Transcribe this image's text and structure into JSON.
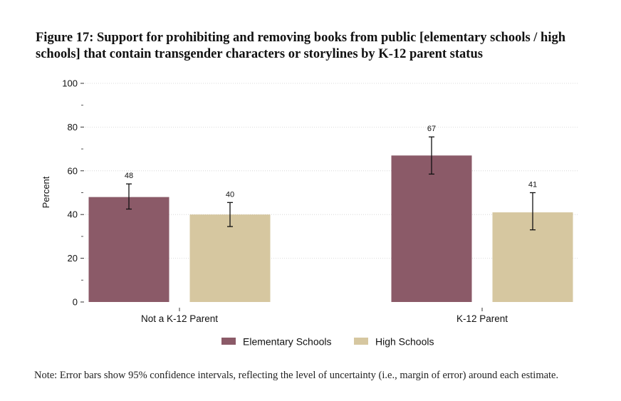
{
  "figure": {
    "title": "Figure 17: Support for prohibiting and removing books from public [elementary schools / high schools] that contain transgender characters or storylines by K-12 parent status",
    "note": "Note: Error bars show 95% confidence intervals, reflecting the level of uncertainty (i.e., margin of error) around each estimate."
  },
  "chart_data": {
    "type": "bar",
    "title": "Figure 17: Support for prohibiting and removing books from public [elementary schools / high schools] that contain transgender characters or storylines by K-12 parent status",
    "xlabel": "",
    "ylabel": "Percent",
    "ylim": [
      0,
      100
    ],
    "yticks": [
      0,
      20,
      40,
      60,
      80,
      100
    ],
    "yticks_minor": [
      10,
      30,
      50,
      70,
      90
    ],
    "grid": true,
    "legend_position": "bottom",
    "categories": [
      "Not a K-12 Parent",
      "K-12 Parent"
    ],
    "series": [
      {
        "name": "Elementary Schools",
        "color": "#8b5a68",
        "values": [
          48,
          67
        ],
        "labels": [
          "48",
          "67"
        ],
        "ci_low": [
          42.5,
          58.5
        ],
        "ci_high": [
          54,
          75.5
        ]
      },
      {
        "name": "High Schools",
        "color": "#d6c7a0",
        "values": [
          40,
          41
        ],
        "labels": [
          "40",
          "41"
        ],
        "ci_low": [
          34.5,
          33
        ],
        "ci_high": [
          45.5,
          50
        ]
      }
    ]
  }
}
